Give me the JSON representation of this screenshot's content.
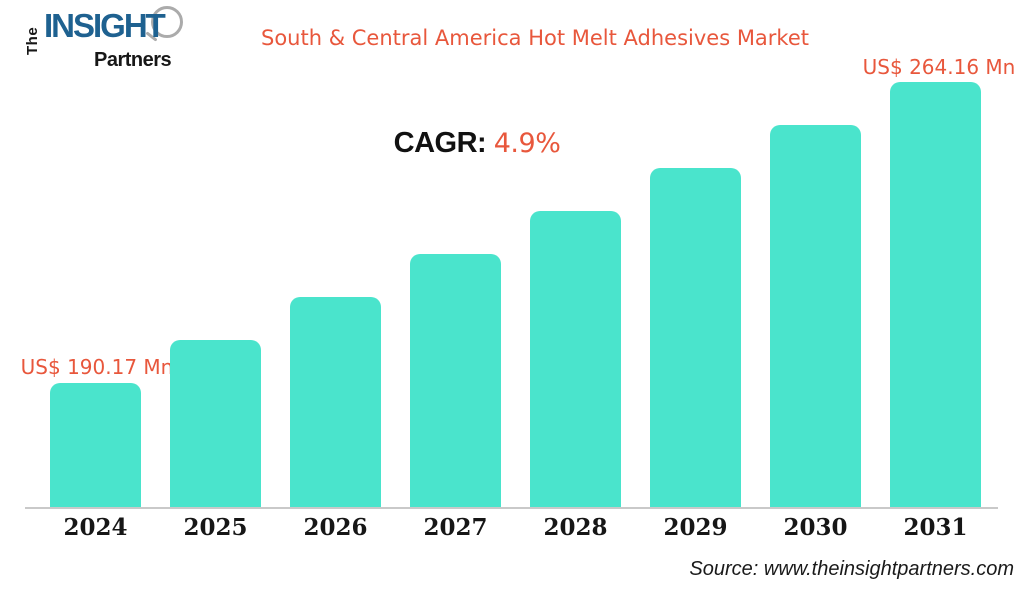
{
  "logo": {
    "the": "The",
    "insight": "INSIGHT",
    "partners": "Partners"
  },
  "header": {
    "title": "South & Central America Hot Melt Adhesives Market"
  },
  "cagr": {
    "label": "CAGR:",
    "value": "4.9%"
  },
  "annotations": {
    "first_bar_value": "US$ 190.17 Mn",
    "last_bar_value": "US$ 264.16 Mn"
  },
  "footer": {
    "source": "Source: www.theinsightpartners.com"
  },
  "colors": {
    "bar": "#4AE4CC",
    "accent_orange": "#E8573C",
    "logo_blue": "#1E6190",
    "axis_line": "#C9C9C9",
    "text_black": "#161616"
  },
  "chart_data": {
    "type": "bar",
    "title": "South & Central America Hot Melt Adhesives Market",
    "categories": [
      "2024",
      "2025",
      "2026",
      "2027",
      "2028",
      "2029",
      "2030",
      "2031"
    ],
    "values": [
      190.17,
      200.74,
      211.31,
      221.88,
      232.45,
      243.02,
      253.59,
      264.16
    ],
    "unit": "US$ Mn",
    "cagr_percent": 4.9,
    "labeled_points": {
      "2024": "US$ 190.17 Mn",
      "2031": "US$ 264.16 Mn"
    },
    "xlabel": "",
    "ylabel": "",
    "grid": false,
    "legend": false,
    "baseline": "non-zero (bars truncated for visual effect)",
    "note": "Only 2024 and 2031 values are printed on the chart; intermediate values estimated by linear interpolation between the two labels"
  }
}
